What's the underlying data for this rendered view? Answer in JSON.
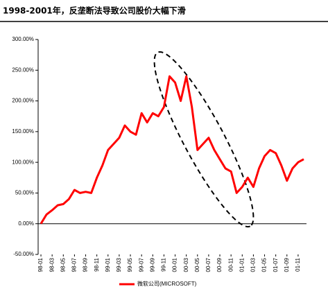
{
  "chart_data": {
    "type": "line",
    "title": "1998-2001年，反垄断法导致公司股价大幅下滑",
    "categories": [
      "98-01",
      null,
      "98-03",
      null,
      "98-05",
      null,
      "98-07",
      null,
      "98-09",
      null,
      "98-11",
      null,
      "99-01",
      null,
      "99-03",
      null,
      "99-05",
      null,
      "99-07",
      null,
      "99-09",
      null,
      "99-11",
      null,
      "00-01",
      null,
      "00-03",
      null,
      "00-05",
      null,
      "00-07",
      null,
      "00-09",
      null,
      "00-11",
      null,
      "01-01",
      null,
      "01-03",
      null,
      "01-05",
      null,
      "01-07",
      null,
      "01-09",
      null,
      "01-11",
      null
    ],
    "series": [
      {
        "name": "微软公司(MICROSOFT)",
        "color": "#ff0000",
        "values": [
          0,
          15,
          22,
          30,
          32,
          40,
          55,
          50,
          52,
          50,
          75,
          95,
          120,
          130,
          140,
          160,
          150,
          145,
          180,
          165,
          180,
          175,
          190,
          240,
          230,
          200,
          240,
          190,
          120,
          130,
          140,
          120,
          105,
          90,
          85,
          50,
          60,
          75,
          60,
          90,
          110,
          120,
          115,
          95,
          70,
          90,
          100,
          105
        ]
      }
    ],
    "ylim": [
      -50,
      300
    ],
    "yticks": [
      {
        "value": -50,
        "label": "-50.00%"
      },
      {
        "value": 0,
        "label": "0.00%"
      },
      {
        "value": 50,
        "label": "50.00%"
      },
      {
        "value": 100,
        "label": "100.00%"
      },
      {
        "value": 150,
        "label": "150.00%"
      },
      {
        "value": 200,
        "label": "200.00%"
      },
      {
        "value": 250,
        "label": "250.00%"
      },
      {
        "value": 300,
        "label": "300.00%"
      }
    ],
    "legend": "bottom"
  }
}
